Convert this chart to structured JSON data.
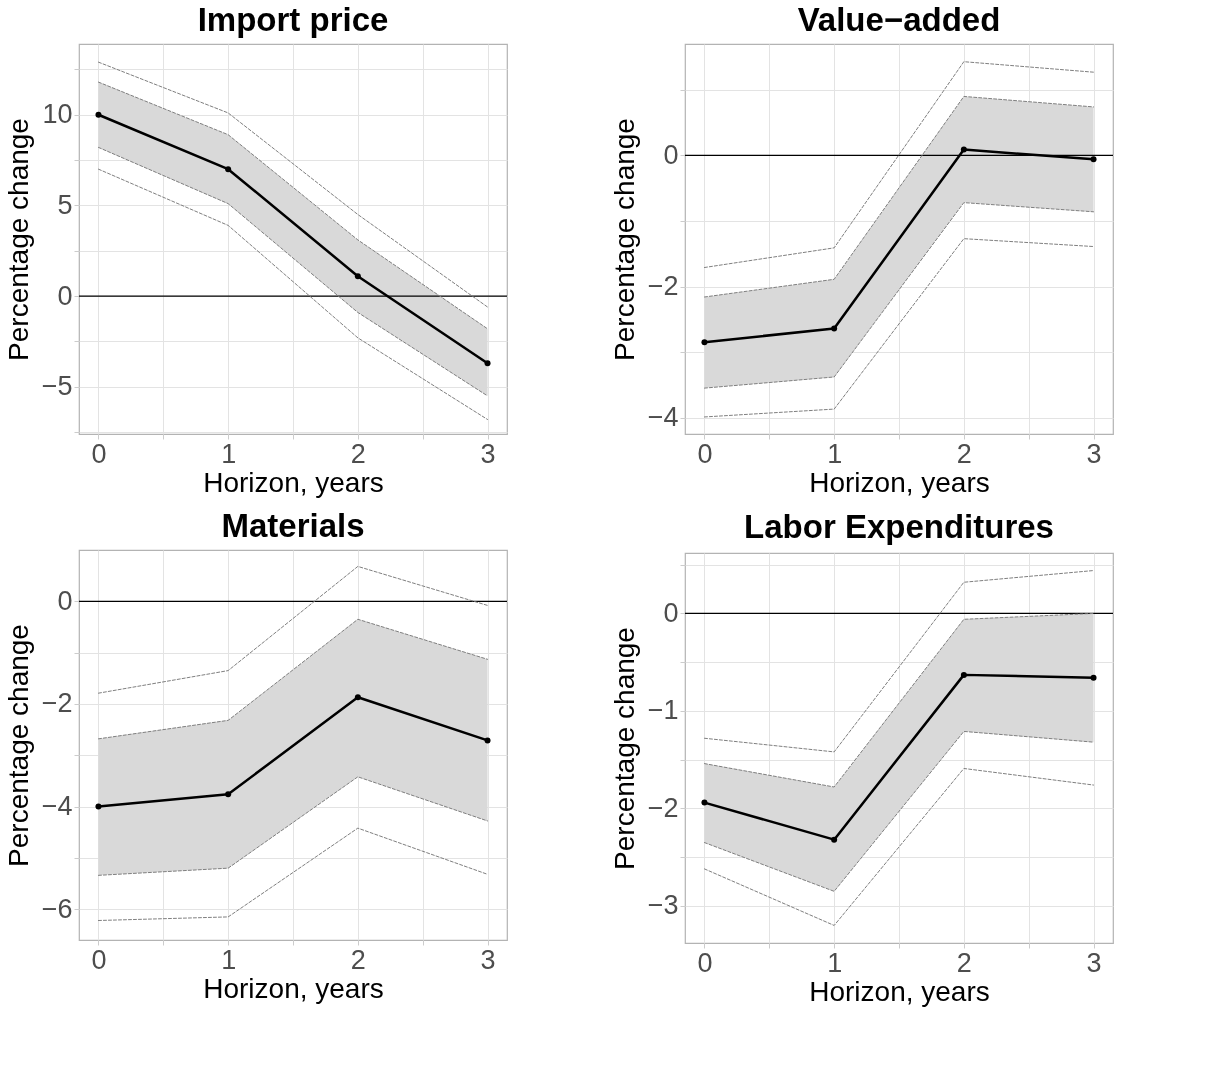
{
  "chart_data": [
    {
      "type": "line",
      "title": "Import price",
      "xlabel": "Horizon, years",
      "ylabel": "Percentage change",
      "x": [
        0,
        1,
        2,
        3
      ],
      "xlim": [
        -0.15,
        3.15
      ],
      "xticks": [
        0,
        {
          "value": 0.5,
          "label": null
        },
        1,
        {
          "value": 1.5,
          "label": null
        },
        2,
        {
          "value": 2.5,
          "label": null
        },
        3
      ],
      "ylim": [
        -7.6,
        13.9
      ],
      "yticks": [
        {
          "value": -7.5,
          "label": null
        },
        -5,
        {
          "value": -2.5,
          "label": null
        },
        0,
        {
          "value": 2.5,
          "label": null
        },
        5,
        {
          "value": 7.5,
          "label": null
        },
        10,
        {
          "value": 12.5,
          "label": null
        }
      ],
      "grid": true,
      "ref_lines": [
        {
          "axis": "y",
          "value": 0,
          "color": "#000000"
        }
      ],
      "series": [
        {
          "type": "line",
          "color": "#000000",
          "line_style": "solid",
          "marker": "circle",
          "values": [
            10.0,
            7.0,
            1.1,
            -3.7
          ],
          "lower": [
            8.2,
            5.1,
            -0.9,
            -5.5
          ],
          "upper": [
            11.8,
            8.9,
            3.1,
            -1.8
          ]
        },
        {
          "type": "line",
          "color": "#7f7f7f",
          "line_style": "dashed",
          "marker": "none",
          "values": [
            11.8,
            8.9,
            3.1,
            -1.8
          ]
        },
        {
          "type": "line",
          "color": "#7f7f7f",
          "line_style": "dashed",
          "marker": "none",
          "values": [
            8.2,
            5.1,
            -0.9,
            -5.5
          ]
        },
        {
          "type": "line",
          "color": "#7f7f7f",
          "line_style": "dashed",
          "marker": "none",
          "values": [
            12.9,
            10.1,
            4.5,
            -0.6
          ]
        },
        {
          "type": "line",
          "color": "#7f7f7f",
          "line_style": "dashed",
          "marker": "none",
          "values": [
            7.0,
            3.9,
            -2.3,
            -6.8
          ]
        }
      ]
    },
    {
      "type": "line",
      "title": "Value−added",
      "xlabel": "Horizon, years",
      "ylabel": "Percentage change",
      "x": [
        0,
        1,
        2,
        3
      ],
      "xlim": [
        -0.15,
        3.15
      ],
      "xticks": [
        0,
        {
          "value": 0.5,
          "label": null
        },
        1,
        {
          "value": 1.5,
          "label": null
        },
        2,
        {
          "value": 2.5,
          "label": null
        },
        3
      ],
      "ylim": [
        -4.25,
        1.7
      ],
      "yticks": [
        -4,
        {
          "value": -3,
          "label": null
        },
        -2,
        {
          "value": -1,
          "label": null
        },
        0,
        {
          "value": 1,
          "label": null
        }
      ],
      "grid": true,
      "ref_lines": [
        {
          "axis": "y",
          "value": 0,
          "color": "#000000"
        }
      ],
      "series": [
        {
          "type": "line",
          "color": "#000000",
          "line_style": "solid",
          "marker": "circle",
          "values": [
            -2.85,
            -2.64,
            0.09,
            -0.06
          ],
          "lower": [
            -3.55,
            -3.38,
            -0.72,
            -0.86
          ],
          "upper": [
            -2.16,
            -1.89,
            0.9,
            0.74
          ]
        },
        {
          "type": "line",
          "color": "#7f7f7f",
          "line_style": "dashed",
          "marker": "none",
          "values": [
            -2.16,
            -1.89,
            0.9,
            0.74
          ]
        },
        {
          "type": "line",
          "color": "#7f7f7f",
          "line_style": "dashed",
          "marker": "none",
          "values": [
            -3.55,
            -3.38,
            -0.72,
            -0.86
          ]
        },
        {
          "type": "line",
          "color": "#7f7f7f",
          "line_style": "dashed",
          "marker": "none",
          "values": [
            -1.71,
            -1.41,
            1.43,
            1.27
          ]
        },
        {
          "type": "line",
          "color": "#7f7f7f",
          "line_style": "dashed",
          "marker": "none",
          "values": [
            -3.99,
            -3.87,
            -1.27,
            -1.39
          ]
        }
      ]
    },
    {
      "type": "line",
      "title": "Materials",
      "xlabel": "Horizon, years",
      "ylabel": "Percentage change",
      "x": [
        0,
        1,
        2,
        3
      ],
      "xlim": [
        -0.15,
        3.15
      ],
      "xticks": [
        0,
        {
          "value": 0.5,
          "label": null
        },
        1,
        {
          "value": 1.5,
          "label": null
        },
        2,
        {
          "value": 2.5,
          "label": null
        },
        3
      ],
      "ylim": [
        -6.6,
        1.0
      ],
      "yticks": [
        -6,
        {
          "value": -5,
          "label": null
        },
        -4,
        {
          "value": -3,
          "label": null
        },
        -2,
        {
          "value": -1,
          "label": null
        },
        0
      ],
      "grid": true,
      "ref_lines": [
        {
          "axis": "y",
          "value": 0,
          "color": "#000000"
        }
      ],
      "series": [
        {
          "type": "line",
          "color": "#000000",
          "line_style": "solid",
          "marker": "circle",
          "values": [
            -4.0,
            -3.76,
            -1.87,
            -2.71
          ],
          "lower": [
            -5.34,
            -5.2,
            -3.42,
            -4.28
          ],
          "upper": [
            -2.68,
            -2.32,
            -0.35,
            -1.13
          ]
        },
        {
          "type": "line",
          "color": "#7f7f7f",
          "line_style": "dashed",
          "marker": "none",
          "values": [
            -2.68,
            -2.32,
            -0.35,
            -1.13
          ]
        },
        {
          "type": "line",
          "color": "#7f7f7f",
          "line_style": "dashed",
          "marker": "none",
          "values": [
            -5.34,
            -5.2,
            -3.42,
            -4.28
          ]
        },
        {
          "type": "line",
          "color": "#7f7f7f",
          "line_style": "dashed",
          "marker": "none",
          "values": [
            -1.79,
            -1.35,
            0.68,
            -0.08
          ]
        },
        {
          "type": "line",
          "color": "#7f7f7f",
          "line_style": "dashed",
          "marker": "none",
          "values": [
            -6.22,
            -6.15,
            -4.42,
            -5.32
          ]
        }
      ]
    },
    {
      "type": "line",
      "title": "Labor Expenditures",
      "xlabel": "Horizon, years",
      "ylabel": "Percentage change",
      "x": [
        0,
        1,
        2,
        3
      ],
      "xlim": [
        -0.15,
        3.15
      ],
      "xticks": [
        0,
        {
          "value": 0.5,
          "label": null
        },
        1,
        {
          "value": 1.5,
          "label": null
        },
        2,
        {
          "value": 2.5,
          "label": null
        },
        3
      ],
      "ylim": [
        -3.38,
        0.62
      ],
      "yticks": [
        -3,
        {
          "value": -2.5,
          "label": null
        },
        -2,
        {
          "value": -1.5,
          "label": null
        },
        -1,
        {
          "value": -0.5,
          "label": null
        },
        0,
        {
          "value": 0.5,
          "label": null
        }
      ],
      "grid": true,
      "ref_lines": [
        {
          "axis": "y",
          "value": 0,
          "color": "#000000"
        }
      ],
      "series": [
        {
          "type": "line",
          "color": "#000000",
          "line_style": "solid",
          "marker": "circle",
          "values": [
            -1.94,
            -2.32,
            -0.63,
            -0.66
          ],
          "lower": [
            -2.35,
            -2.85,
            -1.21,
            -1.32
          ],
          "upper": [
            -1.54,
            -1.78,
            -0.06,
            0.0
          ]
        },
        {
          "type": "line",
          "color": "#7f7f7f",
          "line_style": "dashed",
          "marker": "none",
          "values": [
            -1.54,
            -1.78,
            -0.06,
            0.0
          ]
        },
        {
          "type": "line",
          "color": "#7f7f7f",
          "line_style": "dashed",
          "marker": "none",
          "values": [
            -2.35,
            -2.85,
            -1.21,
            -1.32
          ]
        },
        {
          "type": "line",
          "color": "#7f7f7f",
          "line_style": "dashed",
          "marker": "none",
          "values": [
            -1.28,
            -1.42,
            0.32,
            0.44
          ]
        },
        {
          "type": "line",
          "color": "#7f7f7f",
          "line_style": "dashed",
          "marker": "none",
          "values": [
            -2.62,
            -3.2,
            -1.59,
            -1.76
          ]
        }
      ]
    }
  ]
}
